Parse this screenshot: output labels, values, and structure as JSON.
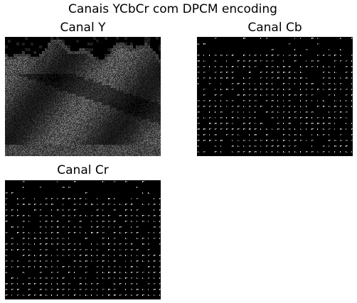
{
  "figure": {
    "title": "Canais YCbCr com DPCM encoding"
  },
  "panels": [
    {
      "id": "y",
      "title": "Canal Y",
      "mode": "luma"
    },
    {
      "id": "cb",
      "title": "Canal Cb",
      "mode": "chroma"
    },
    {
      "id": "cr",
      "title": "Canal Cr",
      "mode": "chroma"
    }
  ],
  "colors": {
    "background": "#000000",
    "pixel_bright": "#ffffff"
  }
}
